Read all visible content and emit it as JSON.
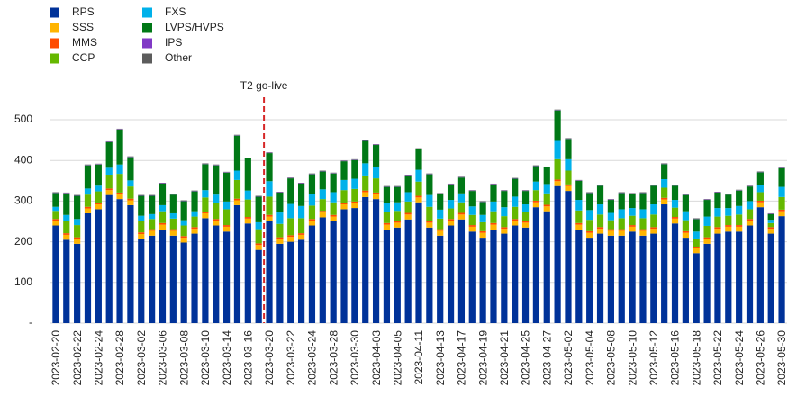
{
  "chart_data": {
    "type": "stacked_bar",
    "categories": [
      "2023-02-20",
      null,
      "2023-02-22",
      null,
      "2023-02-24",
      null,
      "2023-02-28",
      null,
      "2023-03-02",
      null,
      "2023-03-06",
      null,
      "2023-03-08",
      null,
      "2023-03-10",
      null,
      "2023-03-14",
      null,
      "2023-03-16",
      null,
      "2023-03-20",
      null,
      "2023-03-22",
      null,
      "2023-03-24",
      null,
      "2023-03-28",
      null,
      "2023-03-30",
      null,
      "2023-04-03",
      null,
      "2023-04-05",
      null,
      "2023-04-11",
      null,
      "2023-04-13",
      null,
      "2023-04-17",
      null,
      "2023-04-19",
      null,
      "2023-04-21",
      null,
      "2023-04-25",
      null,
      "2023-04-27",
      null,
      "2023-05-02",
      null,
      "2023-05-04",
      null,
      "2023-05-08",
      null,
      "2023-05-10",
      null,
      "2023-05-12",
      null,
      "2023-05-16",
      null,
      "2023-05-18",
      null,
      "2023-05-22",
      null,
      "2023-05-24",
      null,
      "2023-05-26",
      null,
      "2023-05-30"
    ],
    "series": [
      {
        "name": "RPS",
        "color": "#003299",
        "values": [
          240,
          205,
          195,
          270,
          280,
          315,
          305,
          290,
          207,
          215,
          230,
          215,
          198,
          220,
          258,
          240,
          225,
          290,
          245,
          180,
          250,
          195,
          200,
          205,
          240,
          260,
          250,
          280,
          283,
          310,
          305,
          230,
          235,
          255,
          297,
          235,
          215,
          240,
          255,
          225,
          210,
          230,
          220,
          240,
          235,
          285,
          275,
          337,
          325,
          230,
          210,
          220,
          215,
          215,
          225,
          215,
          220,
          292,
          245,
          210,
          172,
          195,
          220,
          225,
          225,
          240,
          285,
          220,
          263
        ]
      },
      {
        "name": "SSS",
        "color": "#ffb400",
        "values": [
          12,
          12,
          12,
          12,
          12,
          12,
          12,
          12,
          12,
          12,
          12,
          12,
          12,
          12,
          12,
          12,
          12,
          12,
          12,
          12,
          12,
          12,
          12,
          12,
          12,
          12,
          12,
          12,
          12,
          12,
          12,
          12,
          12,
          12,
          12,
          12,
          12,
          12,
          12,
          12,
          12,
          12,
          12,
          12,
          12,
          12,
          12,
          12,
          12,
          12,
          12,
          12,
          12,
          12,
          12,
          12,
          12,
          12,
          12,
          12,
          12,
          12,
          12,
          12,
          12,
          12,
          12,
          12,
          12
        ]
      },
      {
        "name": "MMS",
        "color": "#ff4b00",
        "values": [
          4,
          4,
          4,
          4,
          4,
          4,
          4,
          4,
          4,
          4,
          4,
          4,
          4,
          4,
          4,
          4,
          4,
          4,
          4,
          4,
          4,
          4,
          4,
          4,
          4,
          4,
          4,
          4,
          4,
          4,
          4,
          4,
          4,
          4,
          4,
          4,
          4,
          4,
          4,
          4,
          4,
          4,
          4,
          4,
          4,
          4,
          4,
          4,
          4,
          4,
          4,
          4,
          4,
          4,
          4,
          4,
          4,
          4,
          4,
          4,
          4,
          4,
          4,
          4,
          4,
          4,
          4,
          4,
          4
        ]
      },
      {
        "name": "CCP",
        "color": "#65b800",
        "values": [
          20,
          30,
          30,
          30,
          28,
          34,
          46,
          30,
          27,
          25,
          29,
          26,
          26,
          26,
          35,
          40,
          39,
          46,
          43,
          35,
          45,
          33,
          42,
          37,
          33,
          29,
          31,
          31,
          31,
          37,
          35,
          27,
          25,
          28,
          35,
          35,
          26,
          26,
          26,
          25,
          22,
          29,
          27,
          30,
          22,
          26,
          28,
          50,
          34,
          31,
          28,
          31,
          22,
          27,
          23,
          27,
          31,
          25,
          23,
          27,
          20,
          28,
          26,
          23,
          26,
          24,
          21,
          10,
          31
        ]
      },
      {
        "name": "FXS",
        "color": "#00b1ea",
        "values": [
          10,
          15,
          15,
          15,
          14,
          17,
          23,
          15,
          14,
          12,
          15,
          13,
          13,
          13,
          18,
          20,
          19,
          23,
          22,
          17,
          38,
          28,
          35,
          30,
          28,
          24,
          25,
          25,
          25,
          30,
          29,
          22,
          21,
          23,
          29,
          29,
          22,
          21,
          22,
          21,
          18,
          24,
          22,
          25,
          19,
          21,
          23,
          45,
          28,
          26,
          24,
          25,
          18,
          22,
          19,
          22,
          25,
          21,
          19,
          22,
          17,
          23,
          21,
          19,
          21,
          20,
          18,
          8,
          25
        ]
      },
      {
        "name": "LVPS/HVPS",
        "color": "#007816",
        "values": [
          34,
          53,
          57,
          57,
          52,
          63,
          86,
          57,
          49,
          45,
          53,
          46,
          47,
          49,
          64,
          72,
          71,
          86,
          79,
          63,
          69,
          49,
          63,
          55,
          49,
          44,
          46,
          46,
          46,
          55,
          53,
          40,
          38,
          41,
          51,
          51,
          39,
          38,
          39,
          38,
          32,
          42,
          40,
          44,
          33,
          38,
          41,
          75,
          50,
          47,
          42,
          46,
          32,
          40,
          35,
          40,
          46,
          37,
          35,
          40,
          31,
          41,
          38,
          33,
          38,
          36,
          31,
          14,
          46
        ]
      },
      {
        "name": "IPS",
        "color": "#8139c6",
        "values": [
          1,
          1,
          1,
          1,
          1,
          1,
          1,
          1,
          1,
          1,
          1,
          1,
          1,
          1,
          1,
          1,
          1,
          1,
          1,
          1,
          1,
          1,
          1,
          1,
          1,
          1,
          1,
          1,
          1,
          1,
          1,
          1,
          1,
          1,
          1,
          1,
          1,
          1,
          1,
          1,
          1,
          1,
          1,
          1,
          1,
          1,
          1,
          1,
          1,
          1,
          1,
          1,
          1,
          1,
          1,
          1,
          1,
          1,
          1,
          1,
          1,
          1,
          1,
          1,
          1,
          1,
          1,
          1,
          1
        ]
      },
      {
        "name": "Other",
        "color": "#5c5c5c",
        "values": [
          1,
          1,
          1,
          1,
          1,
          1,
          1,
          1,
          1,
          1,
          1,
          1,
          1,
          1,
          1,
          1,
          1,
          1,
          1,
          1,
          1,
          1,
          1,
          1,
          1,
          1,
          1,
          1,
          1,
          1,
          1,
          1,
          1,
          1,
          1,
          1,
          1,
          1,
          1,
          1,
          1,
          1,
          1,
          1,
          1,
          1,
          1,
          1,
          1,
          1,
          1,
          1,
          1,
          1,
          1,
          1,
          1,
          1,
          1,
          1,
          1,
          1,
          1,
          1,
          1,
          1,
          1,
          1,
          1
        ]
      }
    ],
    "ylim": [
      0,
      550
    ],
    "yticks": [
      {
        "value": 0,
        "label": "-"
      },
      100,
      200,
      300,
      400,
      500
    ],
    "grid": true,
    "legend": "top-left",
    "annotation": {
      "text": "T2 go-live",
      "x": "2023-03-20",
      "color": "#d62728"
    }
  }
}
